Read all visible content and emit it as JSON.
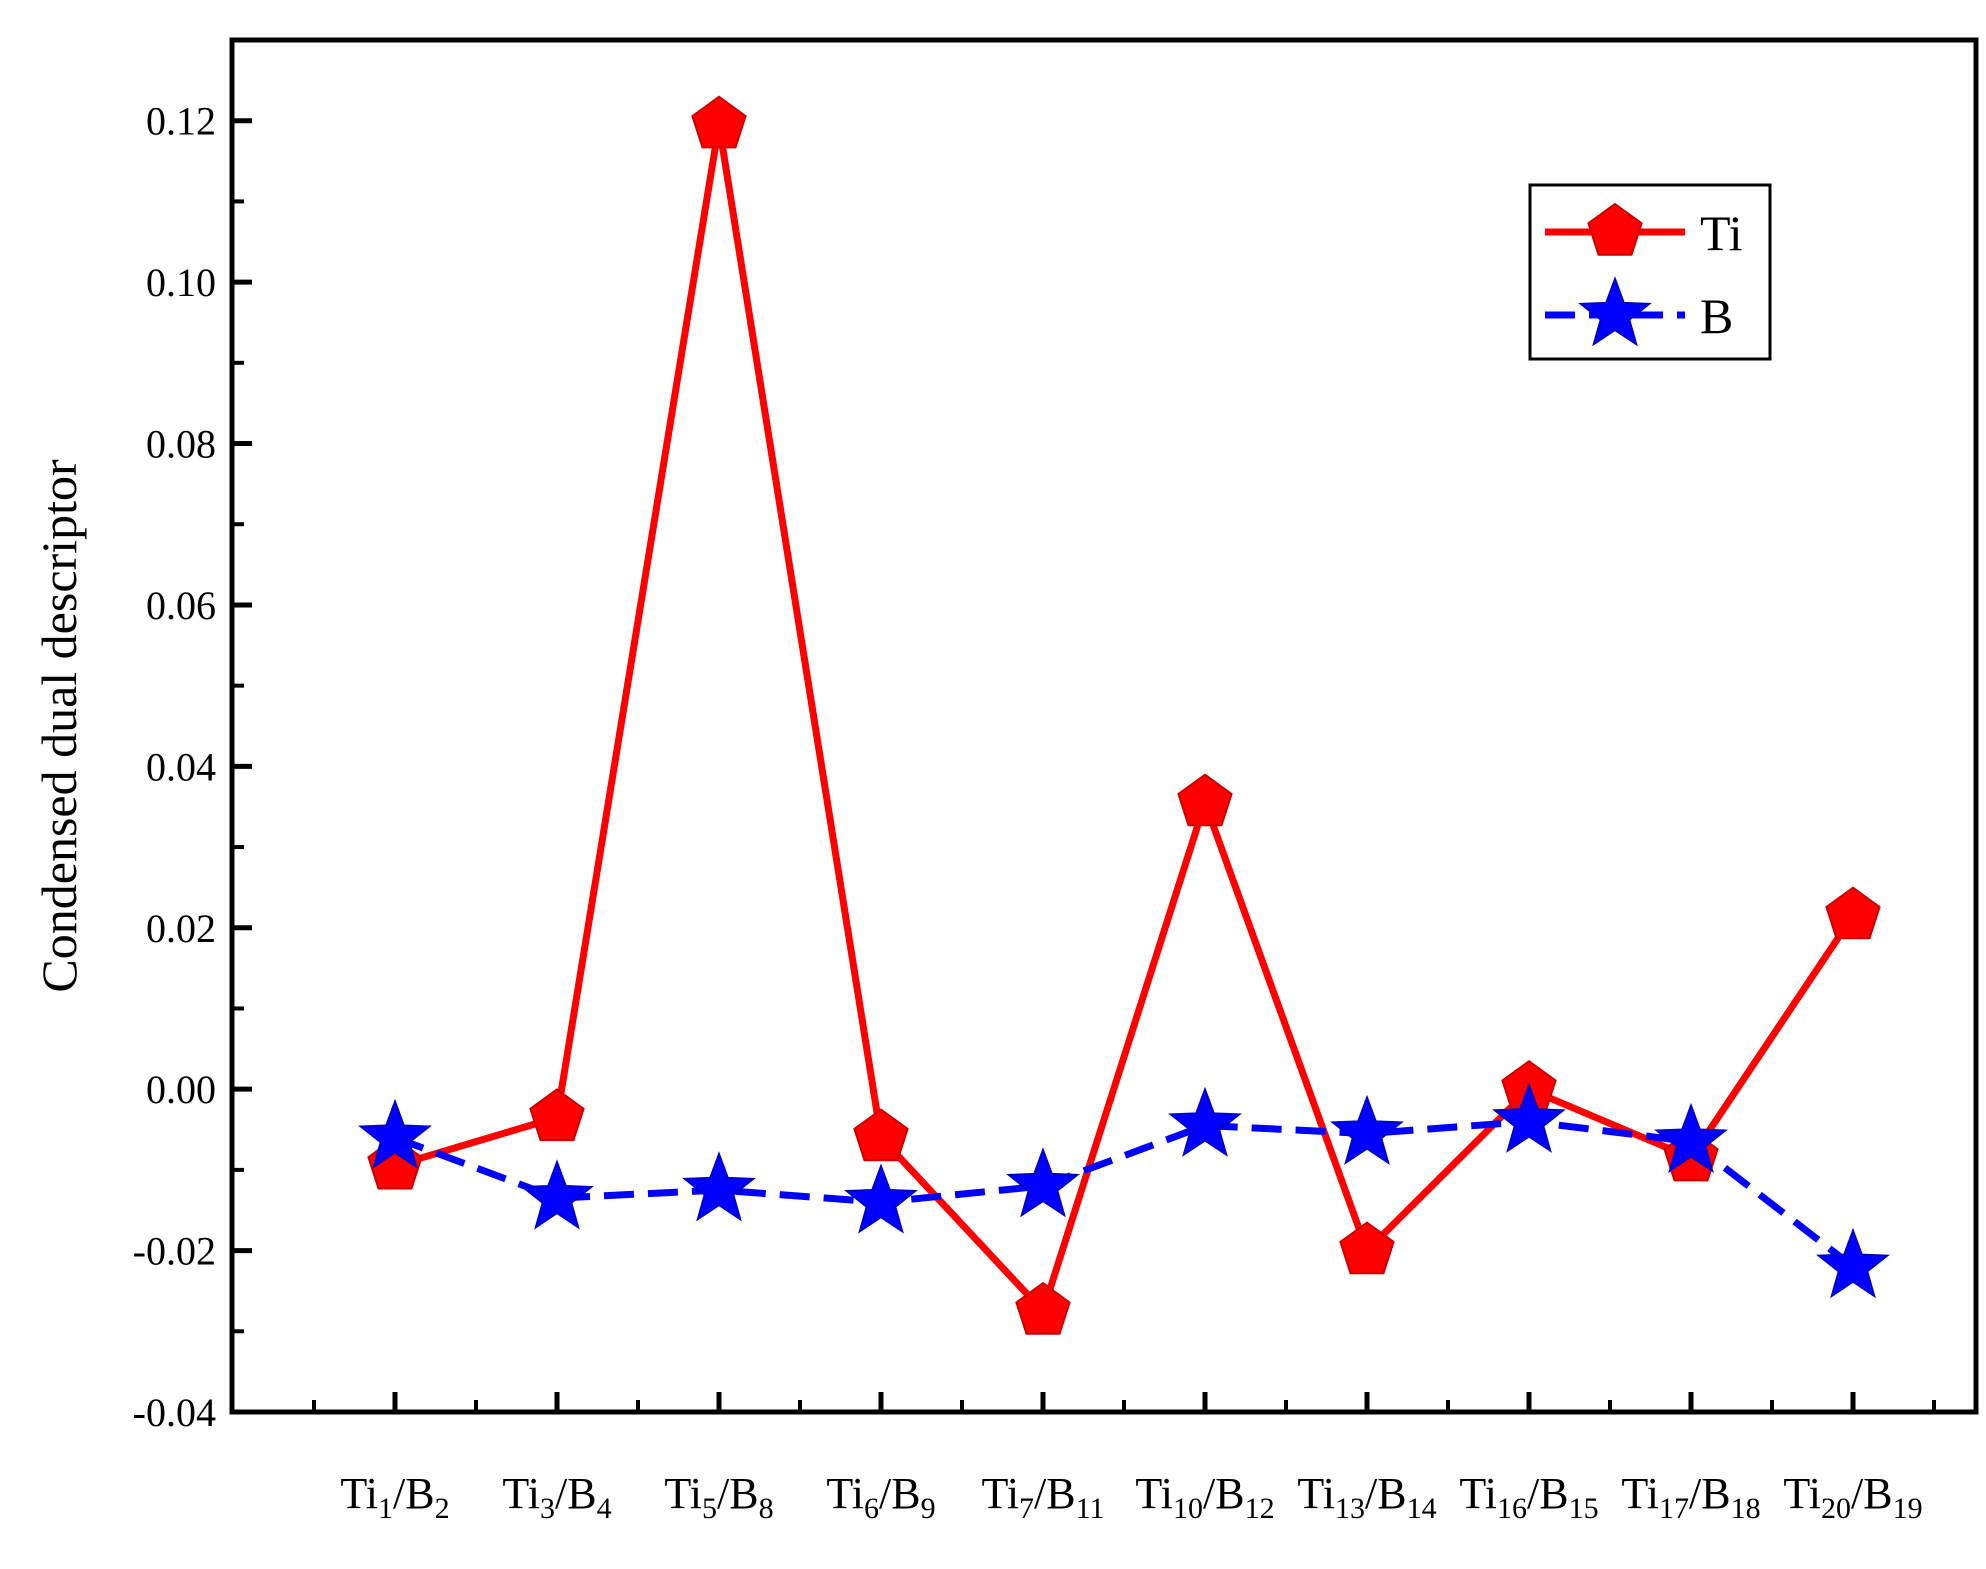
{
  "chart_data": {
    "type": "line",
    "ylabel": "Condensed dual descriptor",
    "xlabel": "",
    "ylim": [
      -0.04,
      0.13
    ],
    "yticks": [
      "-0.04",
      "-0.02",
      "0.00",
      "0.02",
      "0.04",
      "0.06",
      "0.08",
      "0.10",
      "0.12"
    ],
    "categories": [
      "Ti1/B2",
      "Ti3/B4",
      "Ti5/B8",
      "Ti6/B9",
      "Ti7/B11",
      "Ti10/B12",
      "Ti13/B14",
      "Ti16/B15",
      "Ti17/B18",
      "Ti20/B19"
    ],
    "category_parts": [
      {
        "a": "Ti",
        "as": "1",
        "b": "/B",
        "bs": "2"
      },
      {
        "a": "Ti",
        "as": "3",
        "b": "/B",
        "bs": "4"
      },
      {
        "a": "Ti",
        "as": "5",
        "b": "/B",
        "bs": "8"
      },
      {
        "a": "Ti",
        "as": "6",
        "b": "/B",
        "bs": "9"
      },
      {
        "a": "Ti",
        "as": "7",
        "b": "/B",
        "bs": "11"
      },
      {
        "a": "Ti",
        "as": "10",
        "b": "/B",
        "bs": "12"
      },
      {
        "a": "Ti",
        "as": "13",
        "b": "/B",
        "bs": "14"
      },
      {
        "a": "Ti",
        "as": "16",
        "b": "/B",
        "bs": "15"
      },
      {
        "a": "Ti",
        "as": "17",
        "b": "/B",
        "bs": "18"
      },
      {
        "a": "Ti",
        "as": "20",
        "b": "/B",
        "bs": "19"
      }
    ],
    "series": [
      {
        "name": "Ti",
        "color": "#ff0000",
        "marker": "pentagon",
        "line": "solid",
        "values": [
          -0.0095,
          -0.0035,
          0.1195,
          -0.006,
          -0.0275,
          0.0355,
          -0.02,
          0.0,
          -0.0085,
          0.0215
        ]
      },
      {
        "name": "B",
        "color": "#0000ff",
        "marker": "star",
        "line": "dashed",
        "values": [
          -0.006,
          -0.0135,
          -0.0125,
          -0.014,
          -0.012,
          -0.0045,
          -0.0055,
          -0.004,
          -0.0065,
          -0.022
        ]
      }
    ],
    "legend_position": "top-right",
    "grid": false
  }
}
